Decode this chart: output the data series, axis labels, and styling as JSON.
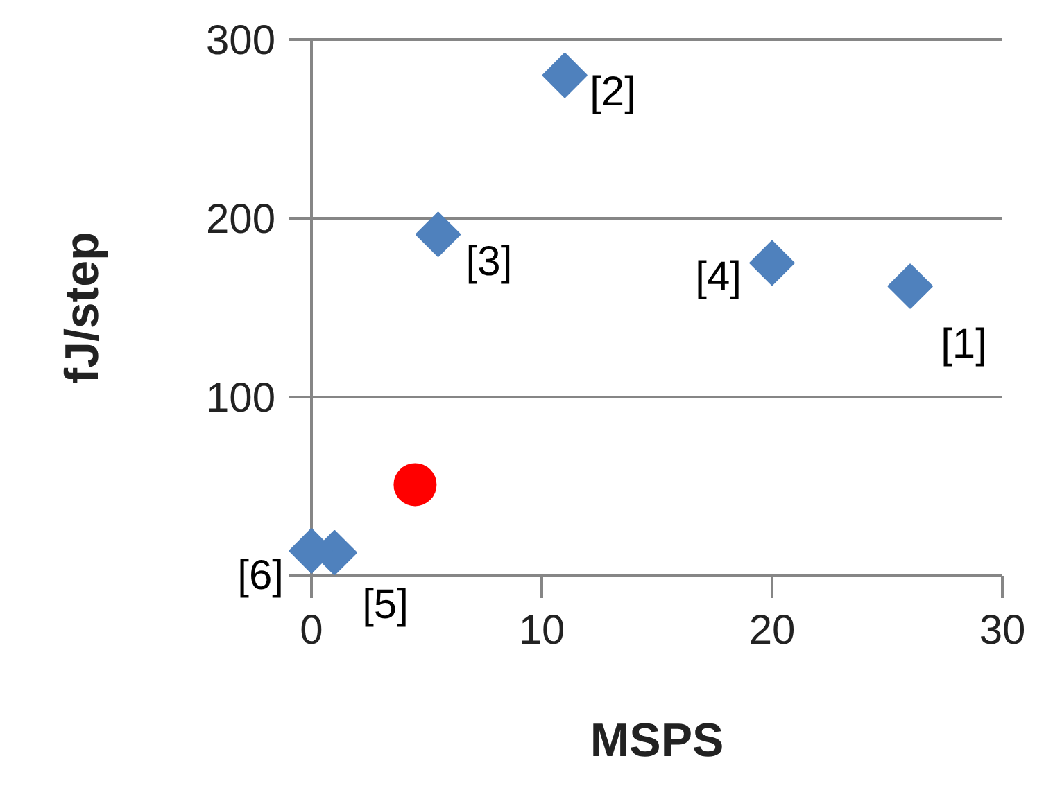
{
  "chart_data": {
    "type": "scatter",
    "xlabel": "MSPS",
    "ylabel": "fJ/step",
    "xlim": [
      0,
      30
    ],
    "ylim": [
      0,
      300
    ],
    "xticks": [
      0,
      10,
      20,
      30
    ],
    "yticks": [
      100,
      200,
      300
    ],
    "grid": "y",
    "series": [
      {
        "color": "#4f81bd",
        "marker": "diamond",
        "x": [
          26,
          11,
          5.5,
          20,
          1,
          0
        ],
        "values": [
          162,
          280,
          191,
          175,
          13,
          14
        ]
      },
      {
        "color": "#ff0000",
        "marker": "circle",
        "x": [
          4.5
        ],
        "values": [
          51
        ]
      }
    ],
    "annotations": [
      {
        "text": "[1]",
        "x": 26,
        "y": 162
      },
      {
        "text": "[2]",
        "x": 11,
        "y": 280
      },
      {
        "text": "[3]",
        "x": 5.5,
        "y": 191
      },
      {
        "text": "[4]",
        "x": 20,
        "y": 175
      },
      {
        "text": "[5]",
        "x": 1,
        "y": 13
      },
      {
        "text": "[6]",
        "x": 0,
        "y": 14
      }
    ]
  }
}
